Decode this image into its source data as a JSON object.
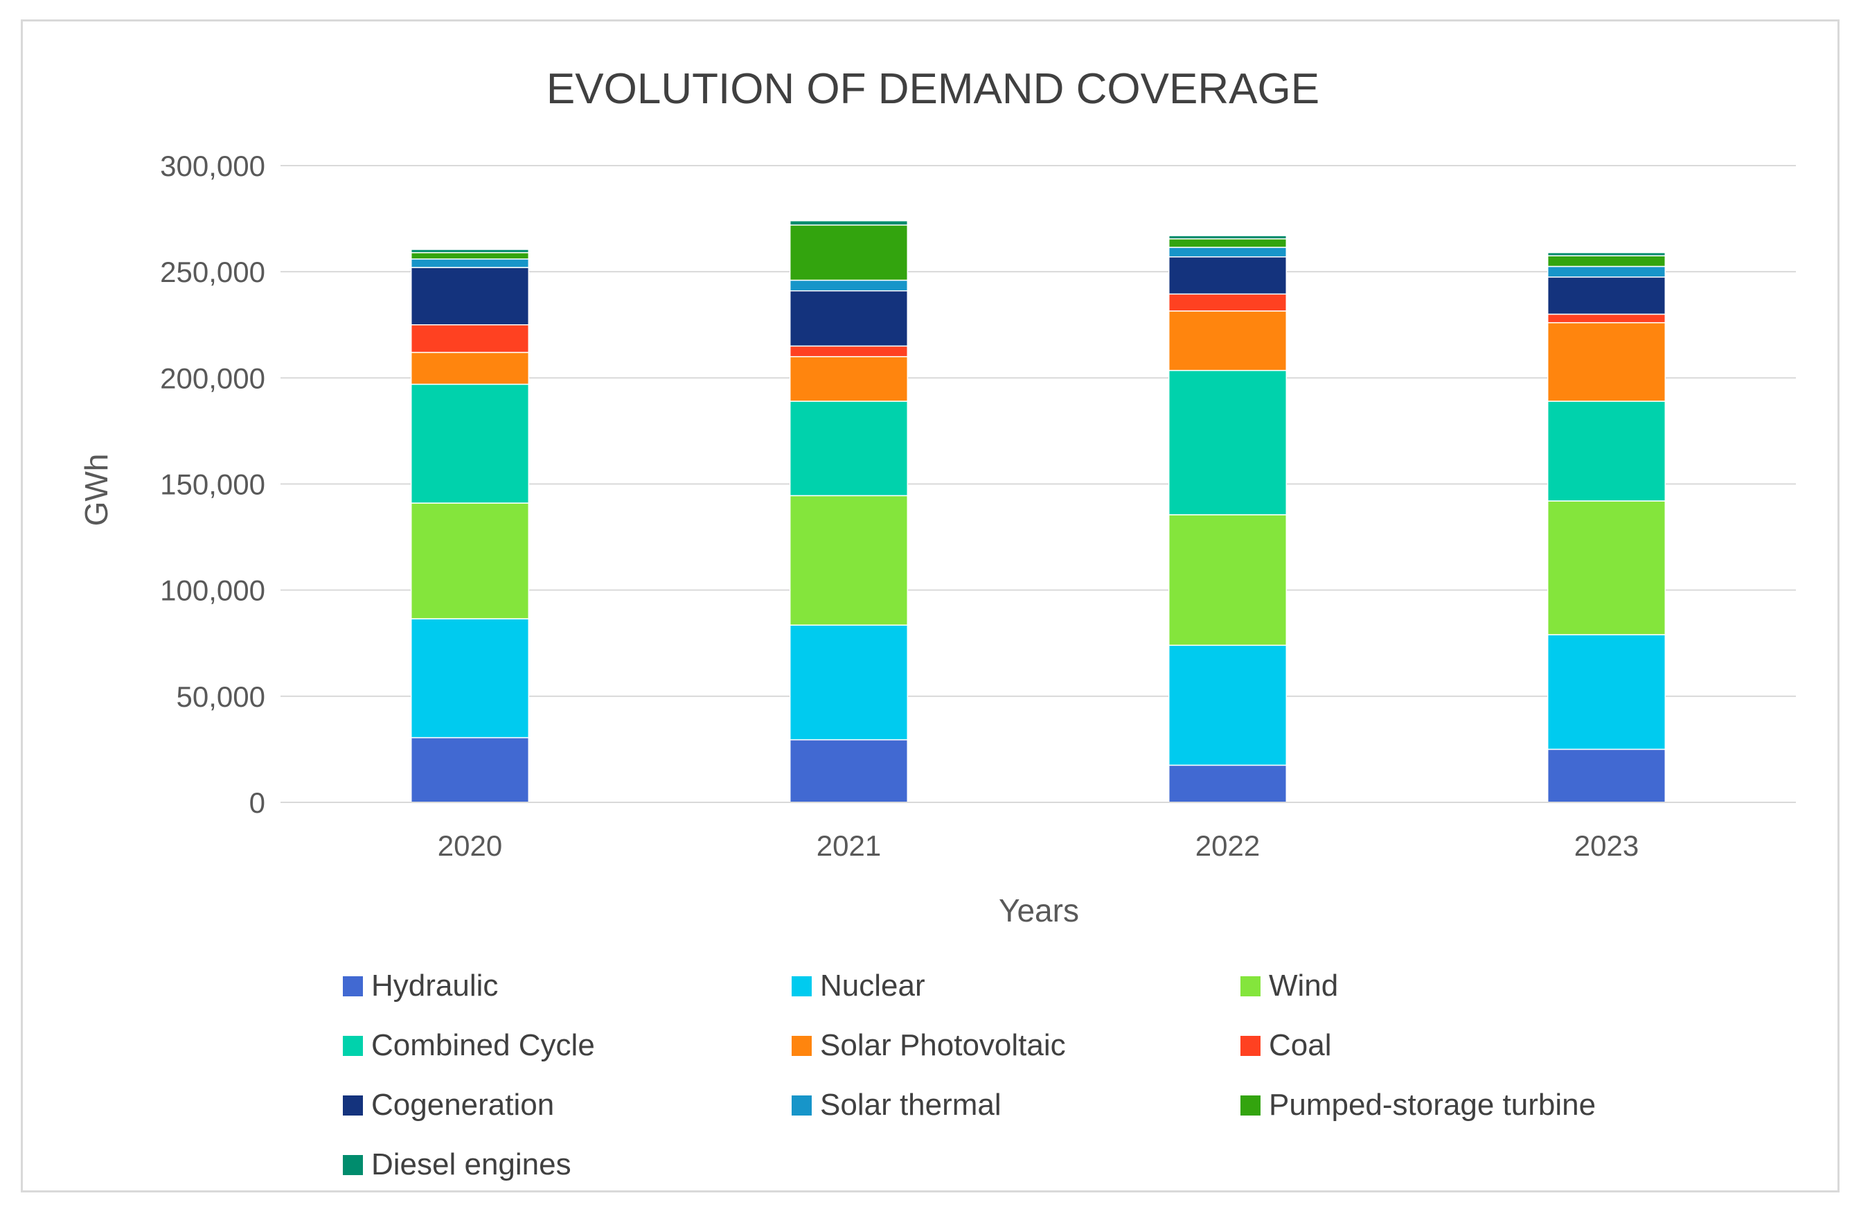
{
  "chart_data": {
    "type": "bar",
    "stacked": true,
    "title": "EVOLUTION OF DEMAND COVERAGE",
    "xlabel": "Years",
    "ylabel": "GWh",
    "ylim": [
      0,
      300000
    ],
    "yticks": [
      0,
      50000,
      100000,
      150000,
      200000,
      250000,
      300000
    ],
    "ytick_labels": [
      "0",
      "50,000",
      "100,000",
      "150,000",
      "200,000",
      "250,000",
      "300,000"
    ],
    "grid": true,
    "legend_position": "bottom",
    "categories": [
      "2020",
      "2021",
      "2022",
      "2023"
    ],
    "series": [
      {
        "name": "Hydraulic",
        "color": "#4169d2",
        "values": [
          30500,
          29500,
          17500,
          25000
        ]
      },
      {
        "name": "Nuclear",
        "color": "#00cbef",
        "values": [
          56000,
          54000,
          56500,
          54000
        ]
      },
      {
        "name": "Wind",
        "color": "#84e53c",
        "values": [
          54500,
          61000,
          61500,
          63000
        ]
      },
      {
        "name": "Combined Cycle",
        "color": "#00d2ac",
        "values": [
          56000,
          44500,
          68000,
          47000
        ]
      },
      {
        "name": "Solar Photovoltaic",
        "color": "#ff850e",
        "values": [
          15000,
          21000,
          28000,
          37000
        ]
      },
      {
        "name": "Coal",
        "color": "#ff4121",
        "values": [
          13000,
          5000,
          8000,
          4000
        ]
      },
      {
        "name": "Cogeneration",
        "color": "#14337d",
        "values": [
          27000,
          26000,
          17500,
          17500
        ]
      },
      {
        "name": "Solar thermal",
        "color": "#1795c9",
        "values": [
          4000,
          5000,
          4500,
          5000
        ]
      },
      {
        "name": "Pumped-storage turbine",
        "color": "#33a40e",
        "values": [
          3000,
          26000,
          4000,
          5000
        ]
      },
      {
        "name": "Diesel engines",
        "color": "#008c6d",
        "values": [
          1500,
          2000,
          1500,
          1500
        ]
      }
    ]
  }
}
